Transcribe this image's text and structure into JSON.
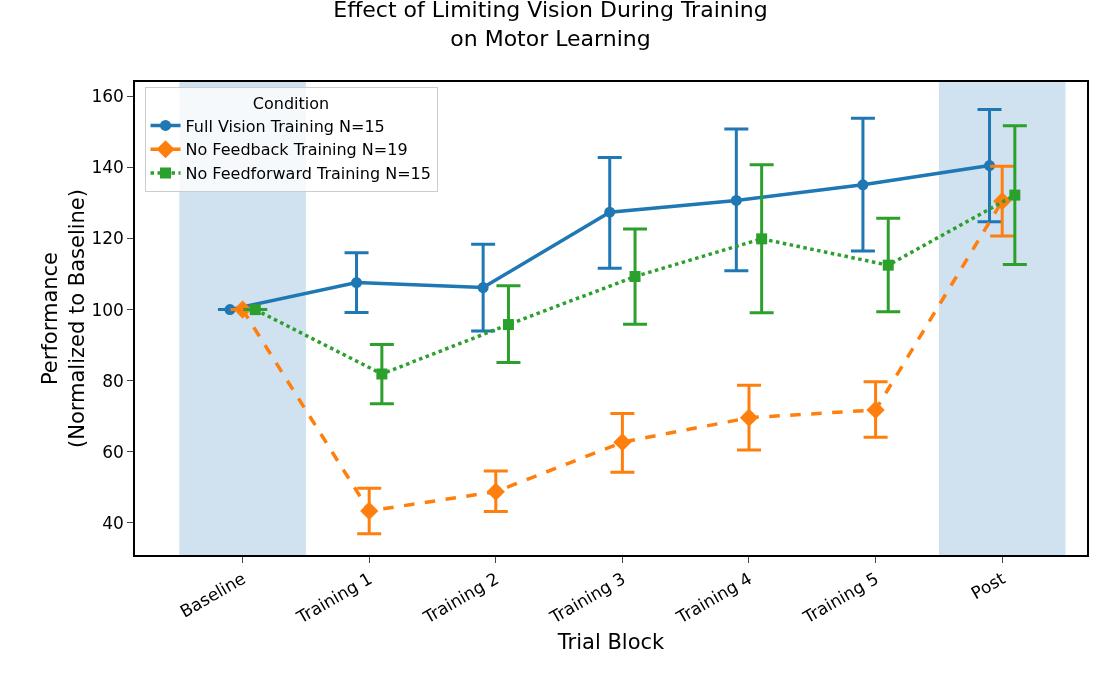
{
  "chart_data": {
    "type": "line",
    "title": "Effect of Limiting Vision During Training on Motor Learning",
    "xlabel": "Trial Block",
    "ylabel": "Performance\n(Normalized to Baseline)",
    "legend_title": "Condition",
    "legend": "top left",
    "grid": false,
    "categories": [
      "Baseline",
      "Training 1",
      "Training 2",
      "Training 3",
      "Training 4",
      "Training 5",
      "Post"
    ],
    "ylim": [
      31,
      164
    ],
    "yticks": [
      40,
      60,
      80,
      100,
      120,
      140,
      160
    ],
    "bands": [
      {
        "axis": "x",
        "from": "Baseline",
        "to": "Baseline",
        "color": "#d0e1ef"
      },
      {
        "axis": "x",
        "from": "Post",
        "to": "Post",
        "color": "#d0e1ef"
      }
    ],
    "series": [
      {
        "name": "Full Vision Training N=15",
        "color": "#1f77b4",
        "marker": "circle",
        "line_style": "solid",
        "values": [
          100,
          107.6,
          106.2,
          127.4,
          130.7,
          135.1,
          140.5
        ],
        "errors": [
          null,
          [
            99.2,
            116
          ],
          [
            94,
            118.4
          ],
          [
            111.6,
            142.8
          ],
          [
            110.9,
            150.8
          ],
          [
            116.5,
            153.8
          ],
          [
            124.7,
            156.3
          ]
        ]
      },
      {
        "name": "No Feedback Training N=19",
        "color": "#ff7f0e",
        "marker": "diamond",
        "line_style": "dashed",
        "values": [
          100,
          43.4,
          48.8,
          62.7,
          69.6,
          71.8,
          130.5
        ],
        "errors": [
          null,
          [
            37,
            49.8
          ],
          [
            43.2,
            54.6
          ],
          [
            54.3,
            70.8
          ],
          [
            60.5,
            78.7
          ],
          [
            64.1,
            79.7
          ],
          [
            120.7,
            140.3
          ]
        ]
      },
      {
        "name": "No Feedforward Training N=15",
        "color": "#2ca02c",
        "marker": "square",
        "line_style": "dotted",
        "values": [
          100,
          81.9,
          95.8,
          109.3,
          119.9,
          112.5,
          132.2
        ],
        "errors": [
          null,
          [
            73.5,
            90.2
          ],
          [
            85.1,
            106.7
          ],
          [
            95.9,
            122.7
          ],
          [
            99.1,
            140.7
          ],
          [
            99.4,
            125.7
          ],
          [
            112.7,
            151.7
          ]
        ]
      }
    ]
  }
}
